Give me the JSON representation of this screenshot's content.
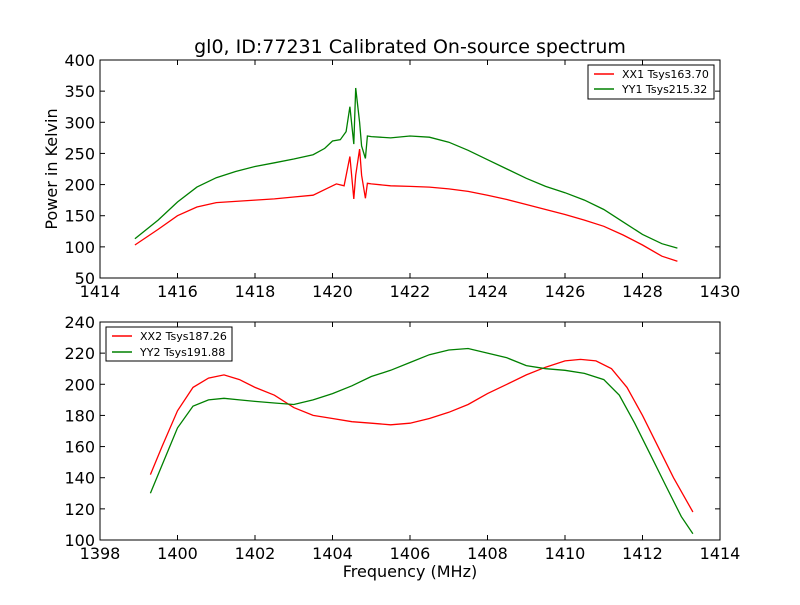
{
  "chart_data": [
    {
      "type": "line",
      "title": "gl0, ID:77231 Calibrated On-source spectrum",
      "xlabel": "",
      "ylabel": "Power in Kelvin",
      "xlim": [
        1414,
        1430
      ],
      "ylim": [
        50,
        400
      ],
      "xticks": [
        "1414",
        "1416",
        "1418",
        "1420",
        "1422",
        "1424",
        "1426",
        "1428",
        "1430"
      ],
      "yticks": [
        "50",
        "100",
        "150",
        "200",
        "250",
        "300",
        "350",
        "400"
      ],
      "legend_position": "top-right",
      "grid": false,
      "series": [
        {
          "name": "XX1 Tsys163.70",
          "color": "#ff0000",
          "x": [
            1414.9,
            1415.5,
            1416.0,
            1416.5,
            1417.0,
            1417.5,
            1418.0,
            1418.5,
            1419.0,
            1419.5,
            1419.9,
            1420.1,
            1420.3,
            1420.45,
            1420.55,
            1420.6,
            1420.7,
            1420.75,
            1420.85,
            1420.9,
            1421.0,
            1421.5,
            1422.0,
            1422.5,
            1423.0,
            1423.5,
            1424.0,
            1424.5,
            1425.0,
            1425.5,
            1426.0,
            1426.5,
            1427.0,
            1427.5,
            1428.0,
            1428.5,
            1428.9
          ],
          "y": [
            103,
            128,
            150,
            164,
            171,
            173,
            175,
            177,
            180,
            183,
            195,
            201,
            198,
            245,
            177,
            215,
            257,
            215,
            178,
            202,
            201,
            198,
            197,
            196,
            193,
            189,
            183,
            176,
            168,
            160,
            152,
            143,
            133,
            119,
            103,
            85,
            77
          ]
        },
        {
          "name": "YY1 Tsys215.32",
          "color": "#008000",
          "x": [
            1414.9,
            1415.5,
            1416.0,
            1416.5,
            1417.0,
            1417.5,
            1418.0,
            1418.5,
            1419.0,
            1419.5,
            1419.8,
            1420.0,
            1420.2,
            1420.35,
            1420.45,
            1420.55,
            1420.6,
            1420.7,
            1420.75,
            1420.85,
            1420.9,
            1421.0,
            1421.5,
            1422.0,
            1422.5,
            1423.0,
            1423.5,
            1424.0,
            1424.5,
            1425.0,
            1425.5,
            1426.0,
            1426.5,
            1427.0,
            1427.5,
            1428.0,
            1428.5,
            1428.9
          ],
          "y": [
            113,
            143,
            172,
            196,
            211,
            221,
            229,
            235,
            241,
            248,
            258,
            270,
            272,
            285,
            325,
            265,
            355,
            300,
            262,
            242,
            278,
            277,
            275,
            278,
            276,
            268,
            255,
            240,
            225,
            210,
            197,
            187,
            175,
            160,
            140,
            120,
            105,
            98
          ]
        }
      ]
    },
    {
      "type": "line",
      "title": "",
      "xlabel": "Frequency (MHz)",
      "ylabel": "",
      "xlim": [
        1398,
        1414
      ],
      "ylim": [
        100,
        240
      ],
      "xticks": [
        "1398",
        "1400",
        "1402",
        "1404",
        "1406",
        "1408",
        "1410",
        "1412",
        "1414"
      ],
      "yticks": [
        "100",
        "120",
        "140",
        "160",
        "180",
        "200",
        "220",
        "240"
      ],
      "legend_position": "top-left",
      "grid": false,
      "series": [
        {
          "name": "XX2 Tsys187.26",
          "color": "#ff0000",
          "x": [
            1399.3,
            1399.6,
            1400.0,
            1400.4,
            1400.8,
            1401.2,
            1401.6,
            1402.0,
            1402.5,
            1403.0,
            1403.5,
            1404.0,
            1404.5,
            1405.0,
            1405.5,
            1406.0,
            1406.5,
            1407.0,
            1407.5,
            1408.0,
            1408.5,
            1409.0,
            1409.5,
            1410.0,
            1410.4,
            1410.8,
            1411.2,
            1411.6,
            1412.0,
            1412.4,
            1412.8,
            1413.3
          ],
          "y": [
            142,
            160,
            183,
            198,
            204,
            206,
            203,
            198,
            193,
            185,
            180,
            178,
            176,
            175,
            174,
            175,
            178,
            182,
            187,
            194,
            200,
            206,
            211,
            215,
            216,
            215,
            210,
            198,
            180,
            160,
            140,
            118
          ]
        },
        {
          "name": "YY2 Tsys191.88",
          "color": "#008000",
          "x": [
            1399.3,
            1399.6,
            1400.0,
            1400.4,
            1400.8,
            1401.2,
            1401.6,
            1402.0,
            1402.5,
            1403.0,
            1403.5,
            1404.0,
            1404.5,
            1405.0,
            1405.5,
            1406.0,
            1406.5,
            1407.0,
            1407.5,
            1408.0,
            1408.5,
            1409.0,
            1409.5,
            1410.0,
            1410.5,
            1411.0,
            1411.4,
            1411.8,
            1412.2,
            1412.6,
            1413.0,
            1413.3
          ],
          "y": [
            130,
            148,
            172,
            186,
            190,
            191,
            190,
            189,
            188,
            187,
            190,
            194,
            199,
            205,
            209,
            214,
            219,
            222,
            223,
            220,
            217,
            212,
            210,
            209,
            207,
            203,
            193,
            175,
            155,
            135,
            115,
            104
          ]
        }
      ]
    }
  ]
}
